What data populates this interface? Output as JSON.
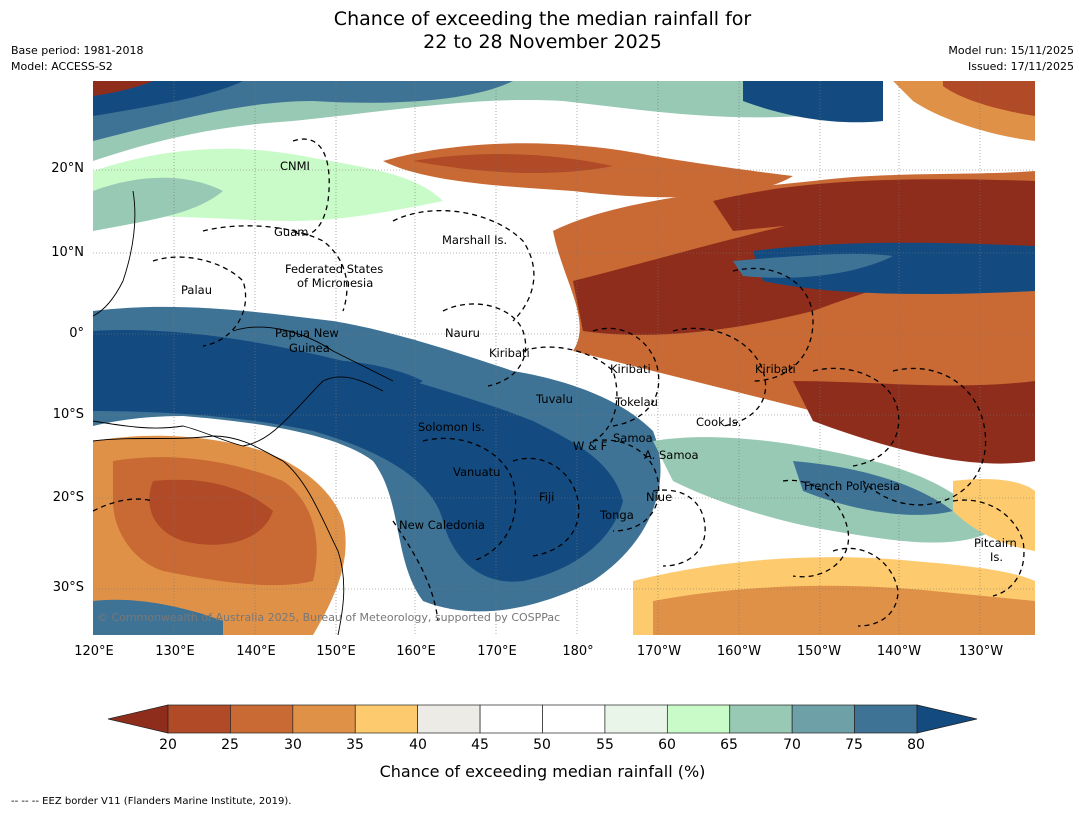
{
  "title_line1": "Chance of exceeding the median rainfall for",
  "title_line2": "22 to 28 November 2025",
  "meta_left": {
    "base_period": "Base period: 1981-2018",
    "model": "Model: ACCESS-S2"
  },
  "meta_right": {
    "model_run": "Model run: 15/11/2025",
    "issued": "Issued: 17/11/2025"
  },
  "map": {
    "copyright": "© Commonwealth of Australia 2025, Bureau of Meteorology, supported by COSPPac",
    "lat_ticks": [
      "20°N",
      "10°N",
      "0°",
      "10°S",
      "20°S",
      "30°S"
    ],
    "lon_ticks": [
      "120°E",
      "130°E",
      "140°E",
      "150°E",
      "160°E",
      "170°E",
      "180°",
      "170°W",
      "160°W",
      "150°W",
      "140°W",
      "130°W"
    ],
    "places": [
      {
        "id": "cnmi",
        "label": "CNMI"
      },
      {
        "id": "guam",
        "label": "Guam"
      },
      {
        "id": "fsm1",
        "label": "Federated States"
      },
      {
        "id": "fsm2",
        "label": "of Micronesia"
      },
      {
        "id": "palau",
        "label": "Palau"
      },
      {
        "id": "marshall",
        "label": "Marshall Is."
      },
      {
        "id": "png1",
        "label": "Papua New"
      },
      {
        "id": "png2",
        "label": "Guinea"
      },
      {
        "id": "nauru",
        "label": "Nauru"
      },
      {
        "id": "kiribati1",
        "label": "Kiribati"
      },
      {
        "id": "kiribati2",
        "label": "Kiribati"
      },
      {
        "id": "kiribati3",
        "label": "Kiribati"
      },
      {
        "id": "tuvalu",
        "label": "Tuvalu"
      },
      {
        "id": "tokelau",
        "label": "Tokelau"
      },
      {
        "id": "cook",
        "label": "Cook Is."
      },
      {
        "id": "solomon",
        "label": "Solomon Is."
      },
      {
        "id": "wf",
        "label": "W & F"
      },
      {
        "id": "samoa",
        "label": "Samoa"
      },
      {
        "id": "asamoa",
        "label": "A. Samoa"
      },
      {
        "id": "vanuatu",
        "label": "Vanuatu"
      },
      {
        "id": "fiji",
        "label": "Fiji"
      },
      {
        "id": "niue",
        "label": "Niue"
      },
      {
        "id": "tonga",
        "label": "Tonga"
      },
      {
        "id": "newcal",
        "label": "New Caledonia"
      },
      {
        "id": "frpoly",
        "label": "French Polynesia"
      },
      {
        "id": "pitcairn1",
        "label": "Pitcairn"
      },
      {
        "id": "pitcairn2",
        "label": "Is."
      }
    ]
  },
  "colorbar": {
    "label": "Chance of exceeding median rainfall (%)",
    "ticks": [
      "20",
      "25",
      "30",
      "35",
      "40",
      "45",
      "50",
      "55",
      "60",
      "65",
      "70",
      "75",
      "80"
    ],
    "colors": [
      "#8f2d1c",
      "#b04a27",
      "#c96a34",
      "#e09148",
      "#fdcb6e",
      "#edebe6",
      "#ffffff",
      "#ffffff",
      "#e8f5e8",
      "#c9fbc9",
      "#98c9b5",
      "#6ea0a8",
      "#3e7396",
      "#134b81"
    ]
  },
  "footnote": "--  --  -- EEZ border V11 (Flanders Marine Institute, 2019)."
}
